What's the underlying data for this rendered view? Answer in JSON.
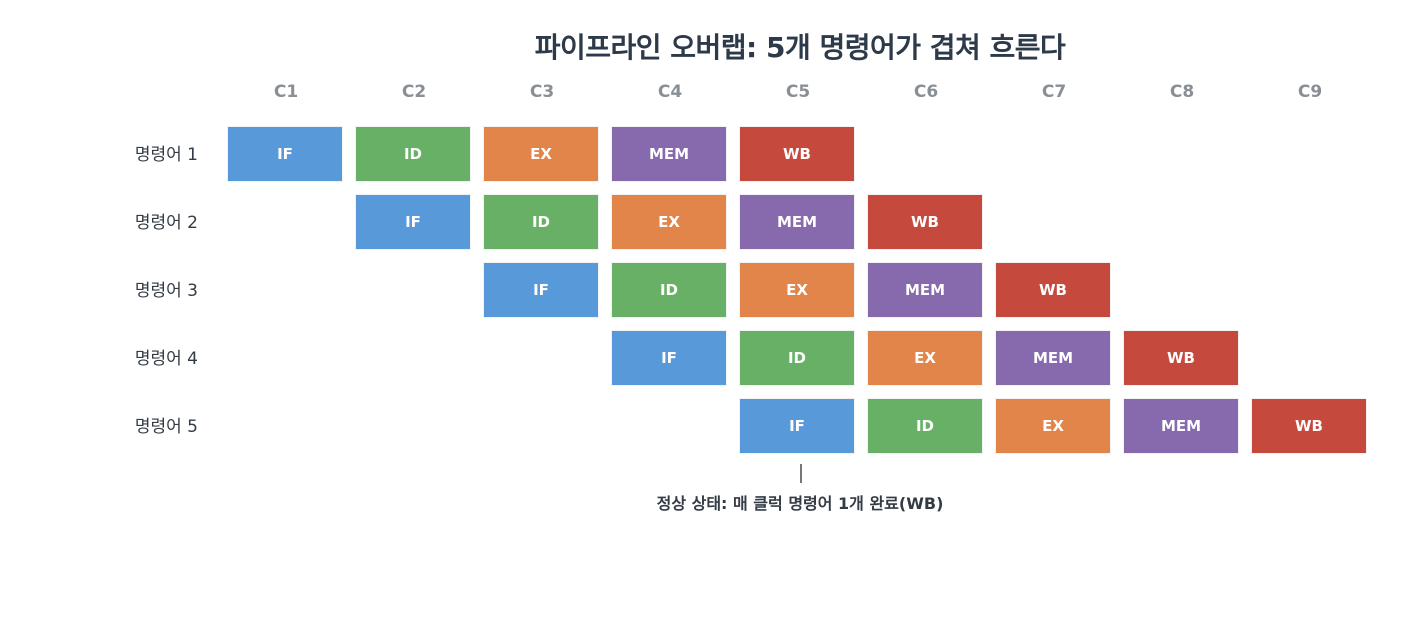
{
  "title": "파이프라인 오버랩: 5개 명령어가 겹쳐 흐른다",
  "columns": [
    "C1",
    "C2",
    "C3",
    "C4",
    "C5",
    "C6",
    "C7",
    "C8",
    "C9"
  ],
  "stage_colors": {
    "IF": "#5899da",
    "ID": "#67b065",
    "EX": "#e2854a",
    "MEM": "#8769ad",
    "WB": "#c6493e"
  },
  "rows": [
    {
      "label": "명령어 1",
      "start_cycle": 1,
      "stages": [
        "IF",
        "ID",
        "EX",
        "MEM",
        "WB"
      ]
    },
    {
      "label": "명령어 2",
      "start_cycle": 2,
      "stages": [
        "IF",
        "ID",
        "EX",
        "MEM",
        "WB"
      ]
    },
    {
      "label": "명령어 3",
      "start_cycle": 3,
      "stages": [
        "IF",
        "ID",
        "EX",
        "MEM",
        "WB"
      ]
    },
    {
      "label": "명령어 4",
      "start_cycle": 4,
      "stages": [
        "IF",
        "ID",
        "EX",
        "MEM",
        "WB"
      ]
    },
    {
      "label": "명령어 5",
      "start_cycle": 5,
      "stages": [
        "IF",
        "ID",
        "EX",
        "MEM",
        "WB"
      ]
    }
  ],
  "annotation": {
    "text": "정상 상태: 매 클럭 명령어 1개 완료(WB)",
    "cycle": "C5"
  }
}
